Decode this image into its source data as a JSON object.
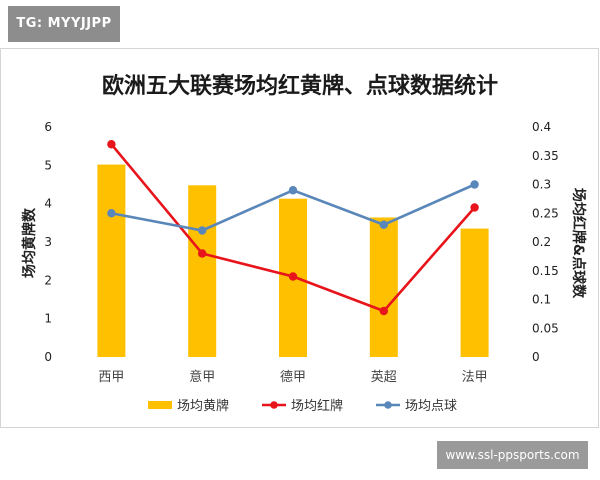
{
  "watermark": {
    "tag": "TG: MYYJJPP",
    "site": "www.ssl-ppsports.com"
  },
  "colors": {
    "bar": "#FFC000",
    "red_line": "#E8141B",
    "blue_line": "#5A87B9"
  },
  "chart_data": {
    "type": "bar+line",
    "title": "欧洲五大联赛场均红黄牌、点球数据统计",
    "categories": [
      "西甲",
      "意甲",
      "德甲",
      "英超",
      "法甲"
    ],
    "ylabel_left": "场均黄牌数",
    "ylabel_right": "场均红牌&点球数",
    "ylim_left": [
      0,
      6
    ],
    "yticks_left": [
      "0",
      "1",
      "2",
      "3",
      "4",
      "5",
      "6"
    ],
    "ylim_right": [
      0,
      0.4
    ],
    "yticks_right": [
      "0",
      "0.05",
      "0.1",
      "0.15",
      "0.2",
      "0.25",
      "0.3",
      "0.35",
      "0.4"
    ],
    "grid": false,
    "legend_position": "bottom",
    "series": [
      {
        "name": "场均黄牌",
        "type": "bar",
        "axis": "left",
        "values": [
          5.02,
          4.48,
          4.13,
          3.64,
          3.35
        ]
      },
      {
        "name": "场均红牌",
        "type": "line",
        "axis": "right",
        "values": [
          0.37,
          0.18,
          0.14,
          0.08,
          0.26
        ]
      },
      {
        "name": "场均点球",
        "type": "line",
        "axis": "right",
        "values": [
          0.25,
          0.22,
          0.29,
          0.23,
          0.3
        ]
      }
    ]
  }
}
